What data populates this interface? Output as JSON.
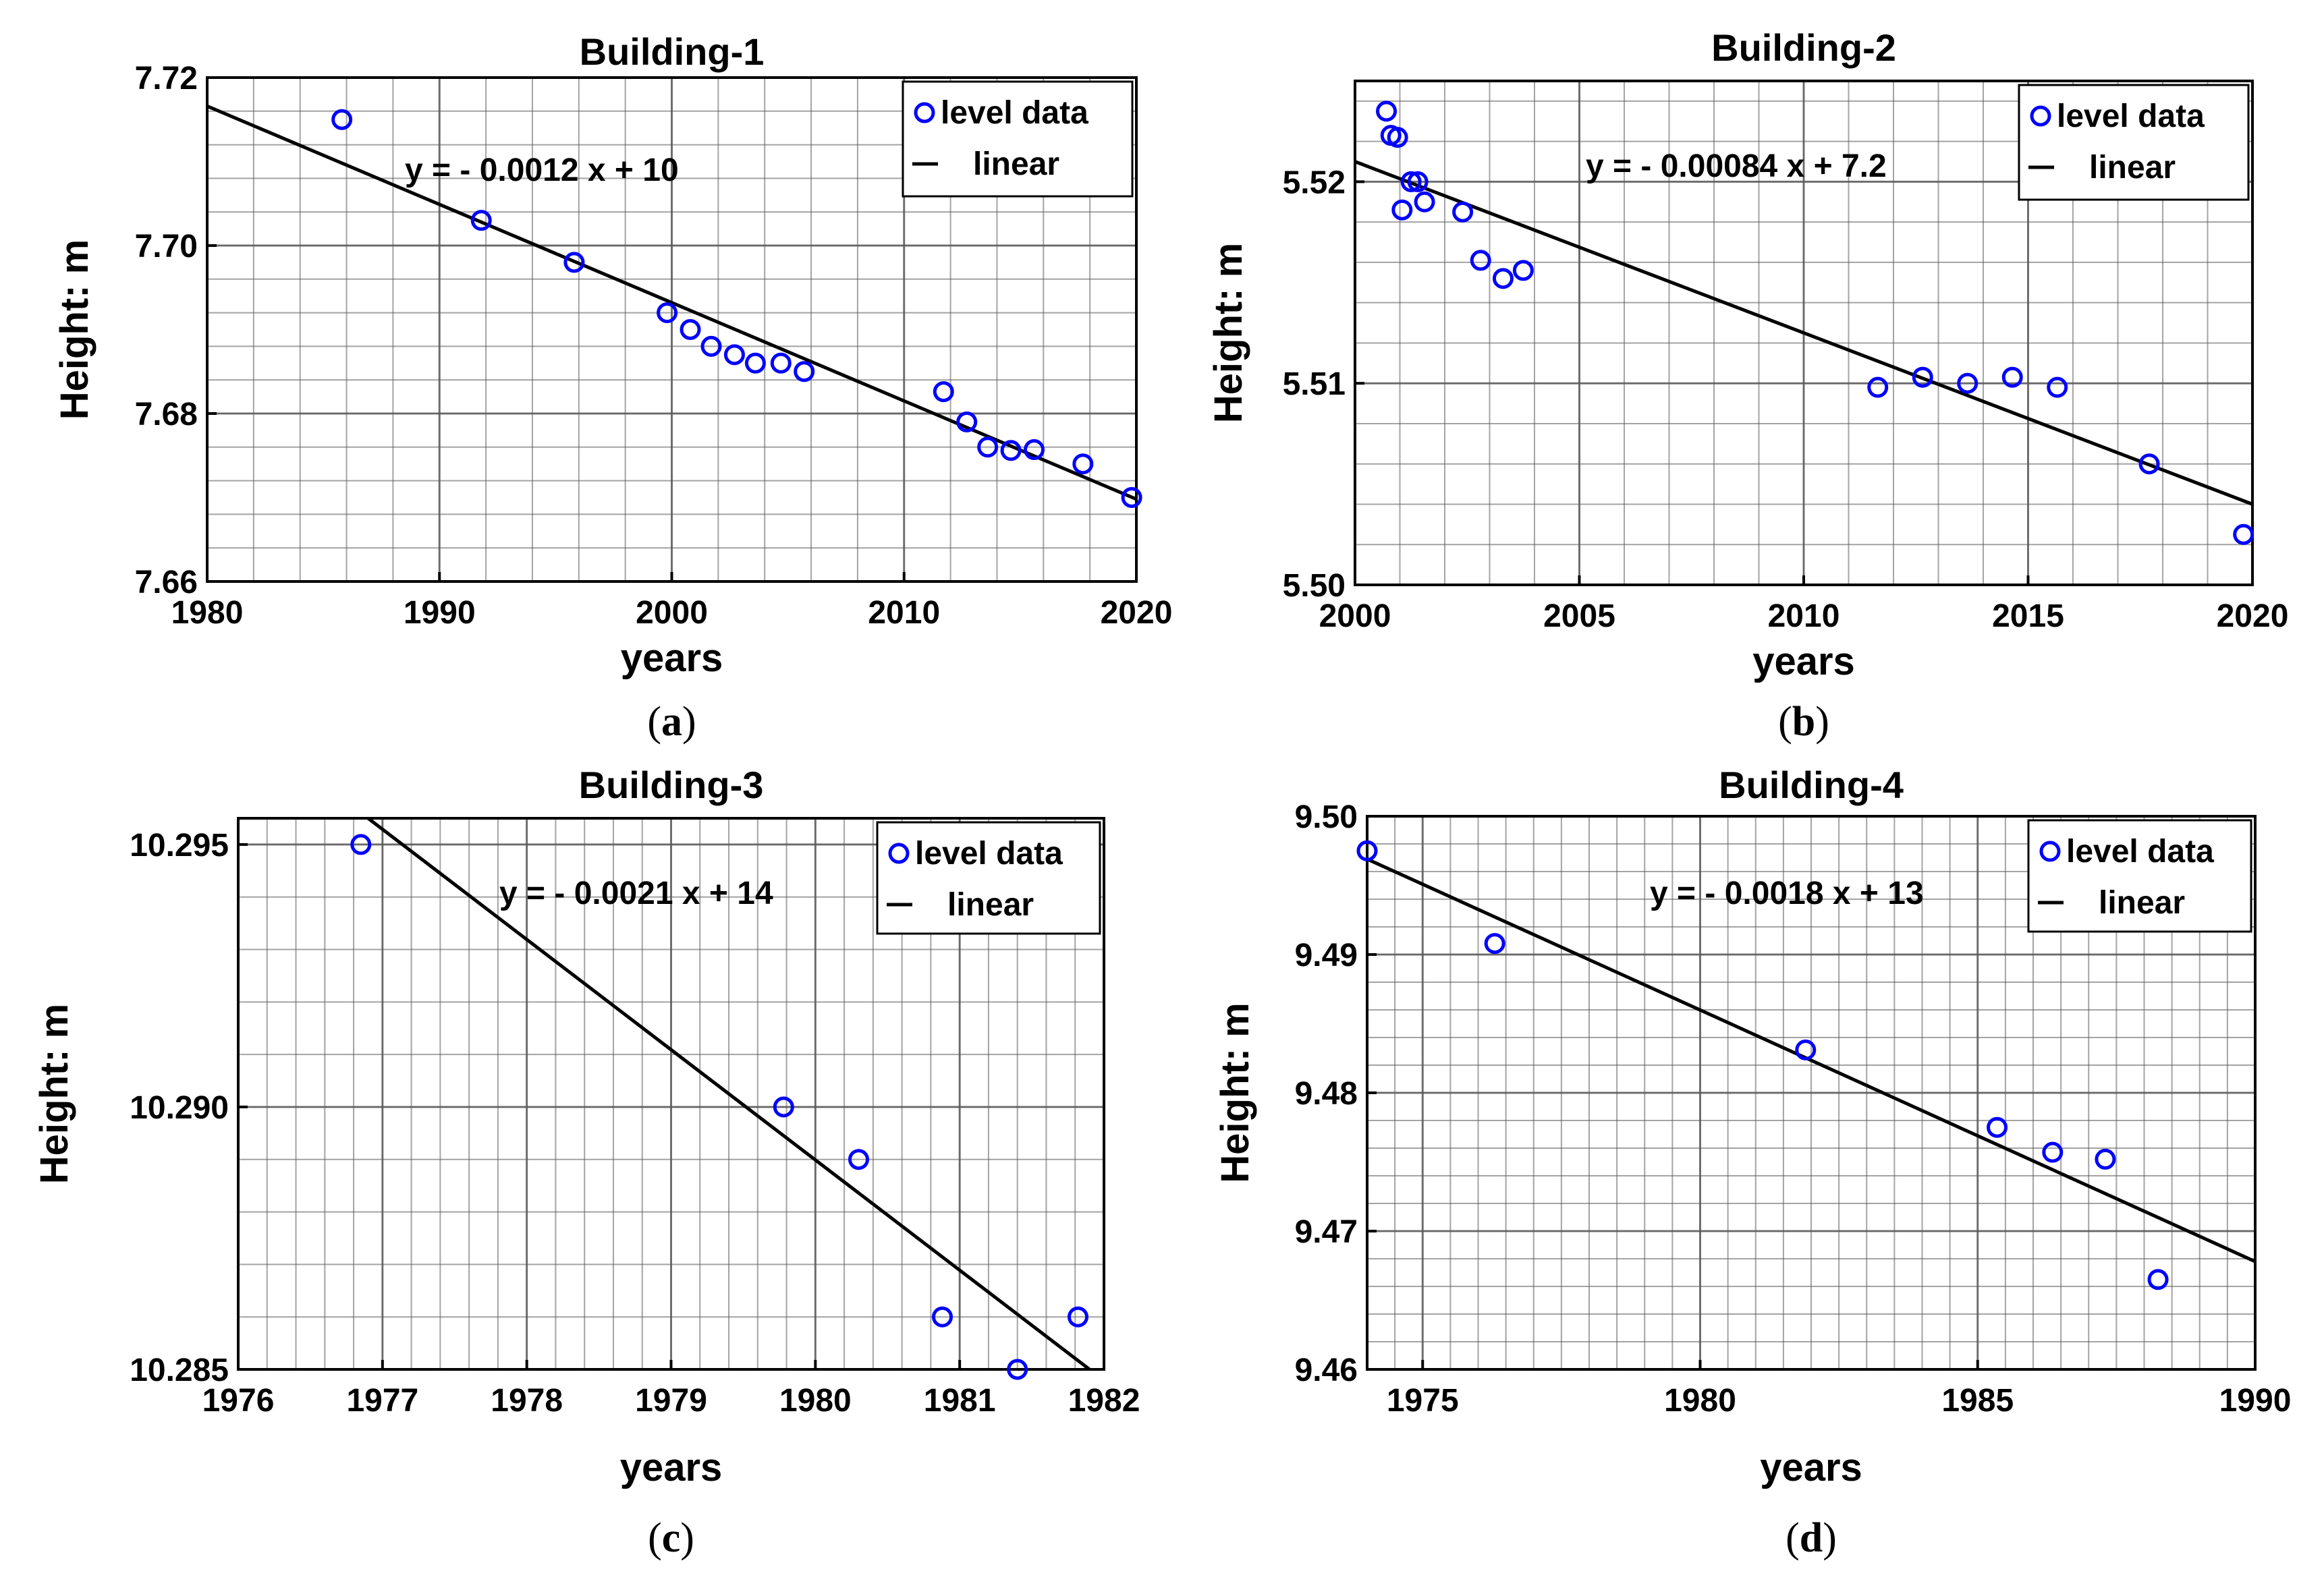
{
  "chart_data": [
    {
      "type": "scatter",
      "title": "Building-1",
      "caption": "a",
      "xlabel": "years",
      "ylabel": "Height: m",
      "xlim": [
        1980,
        2020
      ],
      "ylim": [
        7.66,
        7.72
      ],
      "xticks": [
        1980,
        1990,
        2000,
        2010,
        2020
      ],
      "yticks": [
        7.66,
        7.68,
        7.7,
        7.72
      ],
      "xtick_labels": [
        "1980",
        "1990",
        "2000",
        "2010",
        "2020"
      ],
      "ytick_labels": [
        "7.66",
        "7.68",
        "7.70",
        "7.72"
      ],
      "x_minor_step": 2,
      "y_minor_step": 0.004,
      "equation": "y = - 0.0012 x + 10",
      "fit_line": [
        [
          1980,
          7.7166
        ],
        [
          2020,
          7.6698
        ]
      ],
      "legend": [
        "level data",
        "linear"
      ],
      "legend_position": "top-right",
      "series": [
        {
          "name": "level data",
          "x": [
            1985.8,
            1991.8,
            1995.8,
            1999.8,
            2000.8,
            2001.7,
            2002.7,
            2003.6,
            2004.7,
            2005.7,
            2011.7,
            2012.7,
            2013.6,
            2014.6,
            2015.6,
            2017.7,
            2019.8
          ],
          "y": [
            7.715,
            7.703,
            7.698,
            7.692,
            7.69,
            7.688,
            7.687,
            7.686,
            7.686,
            7.685,
            7.6826,
            7.679,
            7.676,
            7.6756,
            7.6757,
            7.674,
            7.67
          ]
        }
      ]
    },
    {
      "type": "scatter",
      "title": "Building-2",
      "caption": "b",
      "xlabel": "years",
      "ylabel": "Height: m",
      "xlim": [
        2000,
        2020
      ],
      "ylim": [
        5.5,
        5.525
      ],
      "xticks": [
        2000,
        2005,
        2010,
        2015,
        2020
      ],
      "yticks": [
        5.5,
        5.51,
        5.52
      ],
      "xtick_labels": [
        "2000",
        "2005",
        "2010",
        "2015",
        "2020"
      ],
      "ytick_labels": [
        "5.50",
        "5.51",
        "5.52"
      ],
      "x_minor_step": 1,
      "y_minor_step": 0.002,
      "equation": "y = - 0.00084 x + 7.2",
      "fit_line": [
        [
          2000,
          5.521
        ],
        [
          2020,
          5.504
        ]
      ],
      "legend": [
        "level data",
        "linear"
      ],
      "legend_position": "top-right",
      "series": [
        {
          "name": "level data",
          "x": [
            2000.7,
            2000.8,
            2000.95,
            2001.05,
            2001.25,
            2001.4,
            2001.55,
            2002.4,
            2002.8,
            2003.3,
            2003.75,
            2011.65,
            2012.65,
            2013.65,
            2014.65,
            2015.65,
            2017.7,
            2019.8
          ],
          "y": [
            5.5235,
            5.5223,
            5.5222,
            5.5186,
            5.52,
            5.52,
            5.519,
            5.5185,
            5.5161,
            5.5152,
            5.5156,
            5.5098,
            5.5103,
            5.51,
            5.5103,
            5.5098,
            5.506,
            5.5025
          ]
        }
      ]
    },
    {
      "type": "scatter",
      "title": "Building-3",
      "caption": "c",
      "xlabel": "years",
      "ylabel": "Height: m",
      "xlim": [
        1976,
        1982
      ],
      "ylim": [
        10.285,
        10.2955
      ],
      "xticks": [
        1976,
        1977,
        1978,
        1979,
        1980,
        1981,
        1982
      ],
      "yticks": [
        10.285,
        10.29,
        10.295
      ],
      "xtick_labels": [
        "1976",
        "1977",
        "1978",
        "1979",
        "1980",
        "1981",
        "1982"
      ],
      "ytick_labels": [
        "10.285",
        "10.290",
        "10.295"
      ],
      "x_minor_step": 0.2,
      "y_minor_step": 0.001,
      "equation": "y = - 0.0021 x + 14",
      "fit_line": [
        [
          1976.9,
          10.2955
        ],
        [
          1981.9,
          10.285
        ]
      ],
      "legend": [
        "level data",
        "linear"
      ],
      "legend_position": "top-right",
      "series": [
        {
          "name": "level data",
          "x": [
            1976.85,
            1979.78,
            1980.3,
            1980.88,
            1981.4,
            1981.82
          ],
          "y": [
            10.295,
            10.29,
            10.289,
            10.286,
            10.285,
            10.286
          ]
        }
      ]
    },
    {
      "type": "scatter",
      "title": "Building-4",
      "caption": "d",
      "xlabel": "years",
      "ylabel": "Height: m",
      "xlim": [
        1974,
        1990
      ],
      "ylim": [
        9.46,
        9.5
      ],
      "xticks": [
        1975,
        1980,
        1985,
        1990
      ],
      "yticks": [
        9.46,
        9.47,
        9.48,
        9.49,
        9.5
      ],
      "xtick_labels": [
        "1975",
        "1980",
        "1985",
        "1990"
      ],
      "ytick_labels": [
        "9.46",
        "9.47",
        "9.48",
        "9.49",
        "9.50"
      ],
      "x_minor_step": 0.5,
      "y_minor_step": 0.002,
      "equation": "y = - 0.0018 x + 13",
      "fit_line": [
        [
          1974,
          9.4969
        ],
        [
          1990,
          9.4678
        ]
      ],
      "legend": [
        "level data",
        "linear"
      ],
      "legend_position": "top-right",
      "series": [
        {
          "name": "level data",
          "x": [
            1974.0,
            1976.3,
            1981.9,
            1985.35,
            1986.35,
            1987.3,
            1988.25
          ],
          "y": [
            9.4975,
            9.4908,
            9.4831,
            9.4775,
            9.4757,
            9.4752,
            9.4665
          ]
        }
      ]
    }
  ],
  "colors": {
    "marker": "#0000ff",
    "fit_line": "#000000",
    "grid": "#5a5a5a",
    "axes": "#000000"
  }
}
